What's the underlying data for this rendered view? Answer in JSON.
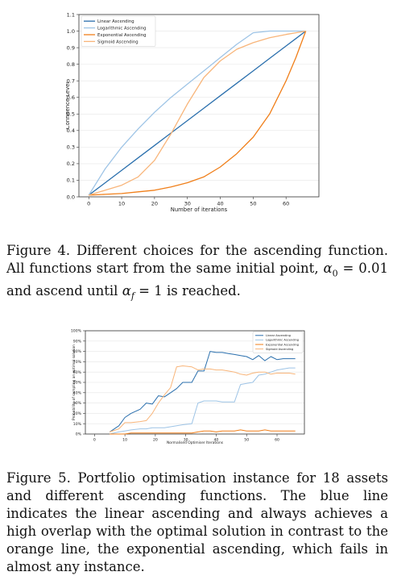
{
  "figure4": {
    "caption_label": "Figure 4.",
    "caption_text_1": "Different choices for the ascending function. All functions start from the same initial point, ",
    "alpha0_symbol": "α",
    "alpha0_sub": "0",
    "alpha0_eq": " = 0.01",
    "caption_text_2": " and ascend until ",
    "alphaf_symbol": "α",
    "alphaf_sub": "f",
    "alphaf_eq": " = 1",
    "caption_text_3": " is reached."
  },
  "figure5": {
    "caption_label": "Figure 5.",
    "caption_text": "Portfolio optimisation instance for 18 assets and different ascending functions. The blue line indicates the linear ascending and always achieves a high overlap with the optimal solution in contrast to the orange line, the exponential ascending, which fails in almost any instance."
  },
  "colors": {
    "linear": "#2a6fad",
    "logarithmic": "#9ec4e6",
    "exponential": "#f07f1a",
    "sigmoid": "#f8b57a"
  },
  "chart_data": [
    {
      "type": "line",
      "xlabel": "Number of iterations",
      "ylabel": "Confidence Level",
      "xlim": [
        -3,
        70
      ],
      "ylim": [
        0,
        1.1
      ],
      "xticks": [
        0,
        10,
        20,
        30,
        40,
        50,
        60
      ],
      "yticks": [
        0.0,
        0.1,
        0.2,
        0.3,
        0.4,
        0.5,
        0.6,
        0.7,
        0.8,
        0.9,
        1.0,
        1.1
      ],
      "ytick_labels": [
        "0.0",
        "0.1",
        "0.2",
        "0.3",
        "0.4",
        "0.5",
        "0.6",
        "0.7",
        "0.8",
        "0.9",
        "1.0",
        "1.1"
      ],
      "grid": "horizontal",
      "legend": "top-left",
      "x": [
        0,
        5,
        10,
        15,
        20,
        25,
        30,
        35,
        40,
        45,
        50,
        55,
        60,
        63,
        66
      ],
      "series": [
        {
          "name": "Linear Ascending",
          "color_key": "linear",
          "values": [
            0.01,
            0.085,
            0.16,
            0.235,
            0.31,
            0.385,
            0.46,
            0.535,
            0.61,
            0.685,
            0.76,
            0.835,
            0.91,
            0.955,
            1.0
          ]
        },
        {
          "name": "Logarithmic Ascending",
          "color_key": "logarithmic",
          "values": [
            0.01,
            0.17,
            0.3,
            0.41,
            0.51,
            0.6,
            0.68,
            0.76,
            0.84,
            0.92,
            0.99,
            1.0,
            1.0,
            1.0,
            1.0
          ]
        },
        {
          "name": "Exponential Ascending",
          "color_key": "exponential",
          "values": [
            0.01,
            0.015,
            0.02,
            0.03,
            0.04,
            0.06,
            0.085,
            0.12,
            0.18,
            0.26,
            0.36,
            0.5,
            0.7,
            0.84,
            1.0
          ]
        },
        {
          "name": "Sigmoid Ascending",
          "color_key": "sigmoid",
          "values": [
            0.01,
            0.04,
            0.07,
            0.12,
            0.22,
            0.38,
            0.56,
            0.72,
            0.82,
            0.89,
            0.93,
            0.96,
            0.98,
            0.99,
            1.0
          ]
        }
      ]
    },
    {
      "type": "line",
      "xlabel": "Normalised Optimiser Iterations",
      "ylabel": "Probability of sampling an optimal solution",
      "xlim": [
        -3,
        69
      ],
      "ylim": [
        0,
        100
      ],
      "xticks": [
        0,
        10,
        20,
        30,
        40,
        50,
        60
      ],
      "yticks": [
        0,
        10,
        20,
        30,
        40,
        50,
        60,
        70,
        80,
        90,
        100
      ],
      "ytick_labels": [
        "0%",
        "10%",
        "20%",
        "30%",
        "40%",
        "50%",
        "60%",
        "70%",
        "80%",
        "90%",
        "100%"
      ],
      "grid": "horizontal",
      "legend": "top-right",
      "x": [
        5,
        8,
        10,
        12,
        15,
        17,
        19,
        21,
        23,
        25,
        27,
        29,
        32,
        34,
        36,
        38,
        40,
        42,
        44,
        46,
        48,
        50,
        52,
        54,
        56,
        58,
        60,
        62,
        64,
        66
      ],
      "series": [
        {
          "name": "Linear Ascending",
          "color_key": "linear",
          "values": [
            2,
            8,
            16,
            20,
            24,
            30,
            29,
            37,
            36,
            40,
            44,
            50,
            50,
            61,
            61,
            80,
            79,
            79,
            78,
            77,
            76,
            75,
            72,
            76,
            71,
            75,
            72,
            73,
            73,
            73
          ]
        },
        {
          "name": "Logarithmic Ascending",
          "color_key": "logarithmic",
          "values": [
            0,
            2,
            3,
            4,
            5,
            5,
            6,
            6,
            6,
            7,
            8,
            9,
            10,
            30,
            32,
            32,
            32,
            31,
            31,
            31,
            48,
            49,
            50,
            57,
            58,
            60,
            62,
            63,
            64,
            64
          ]
        },
        {
          "name": "Exponential Ascending",
          "color_key": "exponential",
          "values": [
            0,
            0,
            0,
            1,
            1,
            1,
            1,
            1,
            1,
            1,
            1,
            1,
            1,
            2,
            3,
            3,
            2,
            3,
            3,
            3,
            4,
            3,
            3,
            3,
            4,
            3,
            3,
            3,
            3,
            3
          ]
        },
        {
          "name": "Sigmoid Ascending",
          "color_key": "sigmoid",
          "values": [
            2,
            5,
            11,
            11,
            12,
            13,
            20,
            30,
            38,
            45,
            65,
            66,
            65,
            62,
            63,
            63,
            62,
            62,
            61,
            60,
            58,
            57,
            59,
            60,
            60,
            58,
            59,
            59,
            59,
            58
          ]
        }
      ]
    }
  ]
}
